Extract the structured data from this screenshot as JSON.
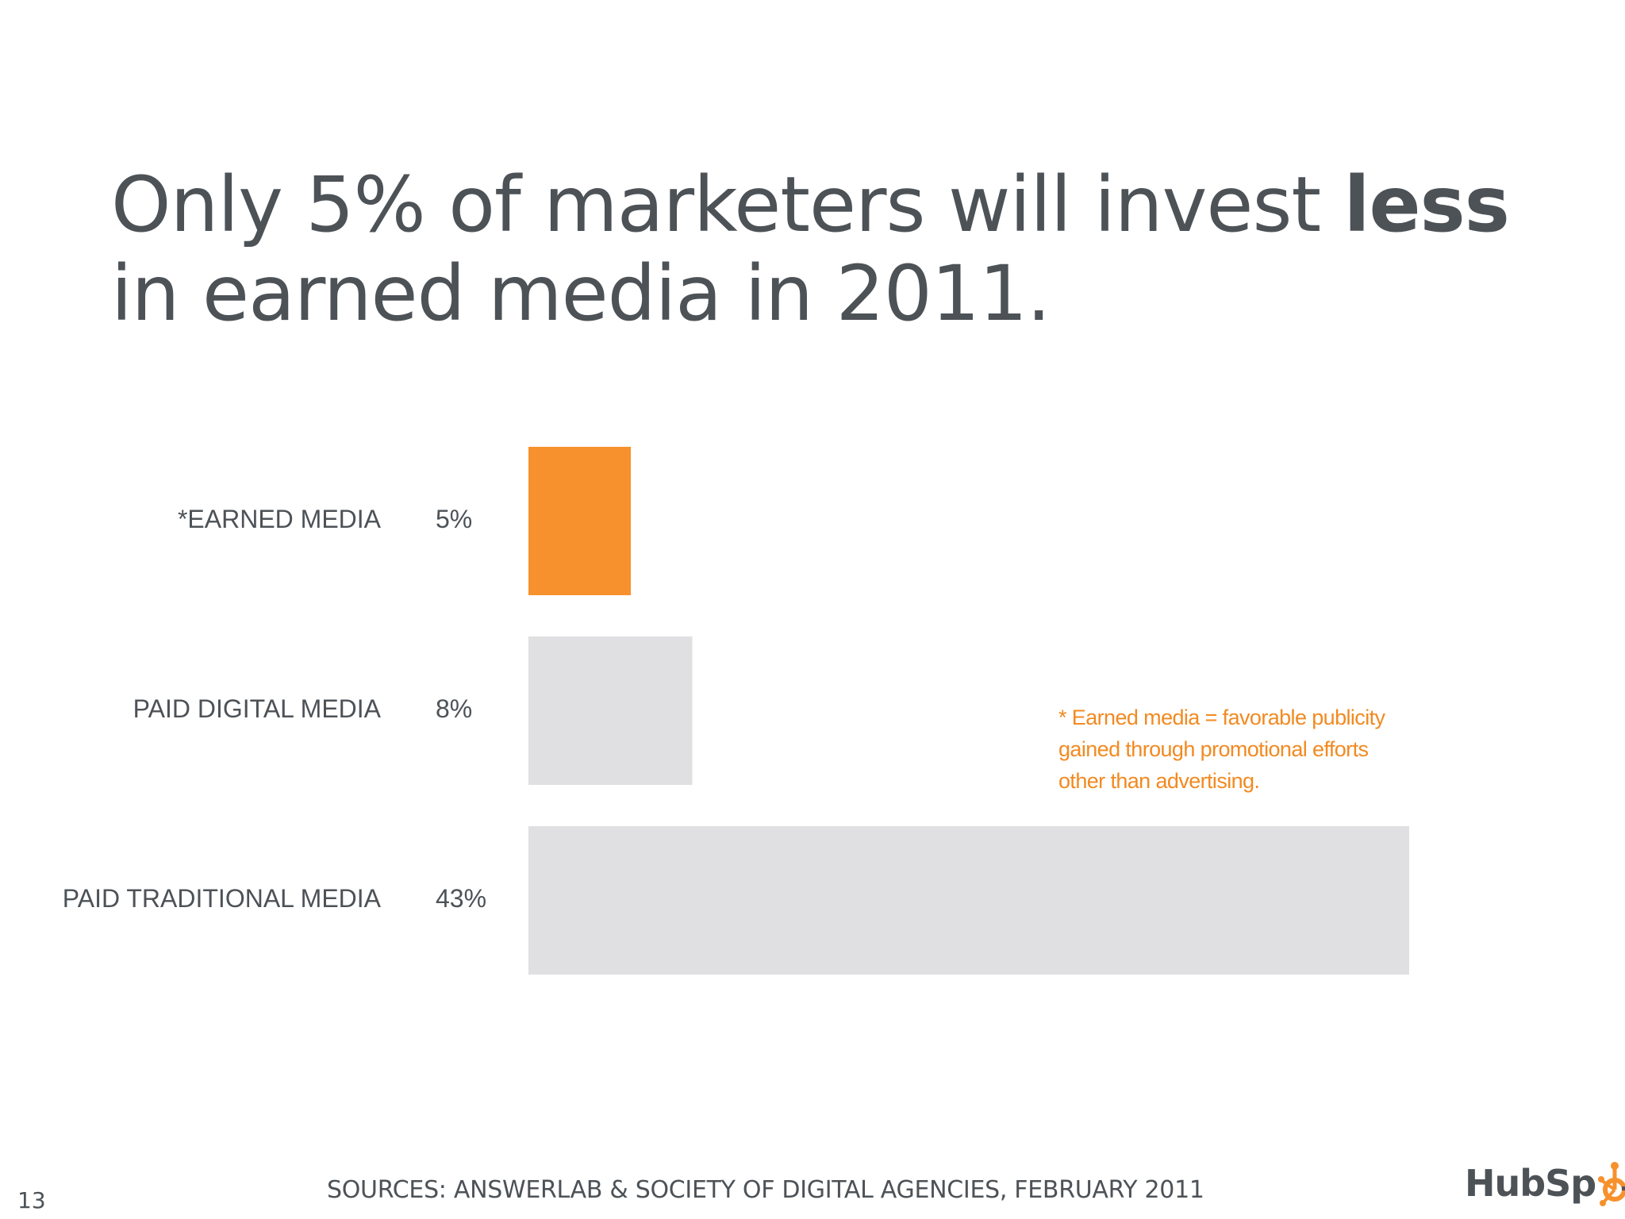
{
  "slide": {
    "title_main": "Only 5% of marketers will invest ",
    "title_emphasis": "less",
    "title_line2": "in earned media in 2011.",
    "footnote_lines": [
      "* Earned media = favorable publicity",
      "gained through promotional efforts",
      "other than advertising."
    ],
    "sources": "SOURCES: ANSWERLAB & SOCIETY OF DIGITAL AGENCIES, FEBRUARY 2011",
    "page_number": "13",
    "logo_text": "HubSpt",
    "logo_icon": "hubspot-sprocket-icon"
  },
  "colors": {
    "accent": "#f7912d",
    "bar_gray": "#e0dfe1",
    "text": "#4d5257",
    "footnote": "#f28a21"
  },
  "chart_data": {
    "type": "bar",
    "orientation": "horizontal",
    "categories": [
      "*EARNED MEDIA",
      "PAID DIGITAL MEDIA",
      "PAID TRADITIONAL MEDIA"
    ],
    "values": [
      5,
      8,
      43
    ],
    "value_labels": [
      "5%",
      "8%",
      "43%"
    ],
    "highlight_index": 0,
    "xlim": [
      0,
      43
    ],
    "grid": false,
    "title": "",
    "xlabel": "",
    "ylabel": ""
  }
}
